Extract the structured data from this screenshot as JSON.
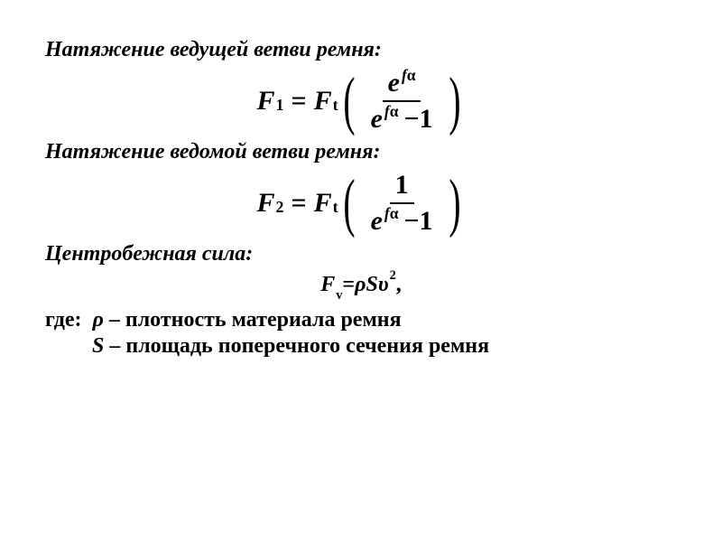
{
  "heading1": "Натяжение ведущей ветви ремня:",
  "heading2": "Натяжение ведомой ветви ремня:",
  "heading3": "Центробежная сила:",
  "formula1": {
    "lhs_var": "F",
    "lhs_sub": "1",
    "eq": "=",
    "rhs_var": "F",
    "rhs_sub": "t",
    "lparen": "(",
    "rparen": ")",
    "num_base": "e",
    "num_exp_f": "f",
    "num_exp_alpha": "α",
    "den_base": "e",
    "den_exp_f": "f",
    "den_exp_alpha": "α",
    "den_minus": "−",
    "den_one": "1"
  },
  "formula2": {
    "lhs_var": "F",
    "lhs_sub": "2",
    "eq": "=",
    "rhs_var": "F",
    "rhs_sub": "t",
    "lparen": "(",
    "rparen": ")",
    "num_one": "1",
    "den_base": "e",
    "den_exp_f": "f",
    "den_exp_alpha": "α",
    "den_minus": "−",
    "den_one": "1"
  },
  "centrifugal": {
    "var": "F",
    "sub": "v",
    "eq": "=",
    "rho": "ρ",
    "S": "S",
    "v": "υ",
    "sq": "2",
    "comma": ","
  },
  "where_label": "где:",
  "where_rho_var": "ρ",
  "where_rho_dash": " – ",
  "where_rho_text": "плотность материала ремня",
  "where_S_var": "S",
  "where_S_dash": " – ",
  "where_S_text": "площадь поперечного сечения ремня"
}
